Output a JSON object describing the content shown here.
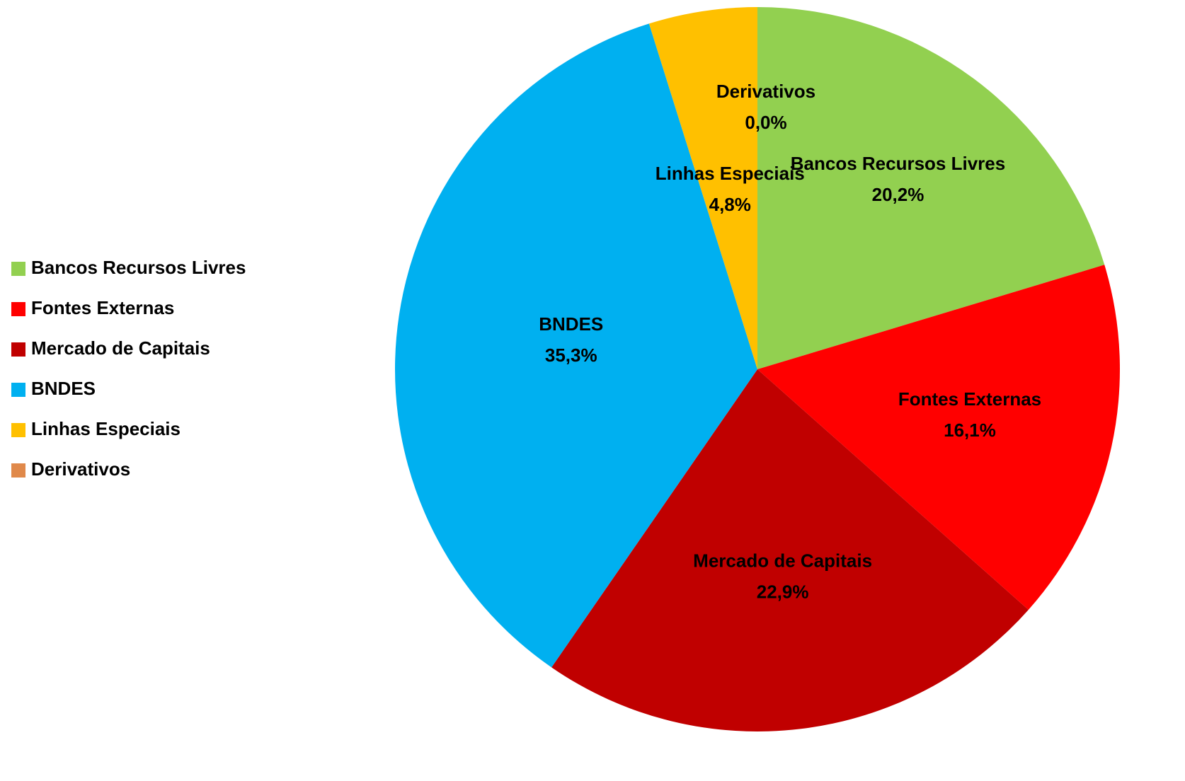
{
  "chart_data": {
    "type": "pie",
    "categories": [
      "Bancos Recursos Livres",
      "Fontes Externas",
      "Mercado de Capitais",
      "BNDES",
      "Linhas Especiais",
      "Derivativos"
    ],
    "values": [
      20.2,
      16.1,
      22.9,
      35.3,
      4.8,
      0.0
    ],
    "value_labels": [
      "20,2%",
      "16,1%",
      "22,9%",
      "35,3%",
      "4,8%",
      "0,0%"
    ],
    "colors": [
      "#92d050",
      "#ff0000",
      "#c00000",
      "#00b0f0",
      "#ffc000",
      "#e0894a"
    ],
    "legend": "left"
  }
}
